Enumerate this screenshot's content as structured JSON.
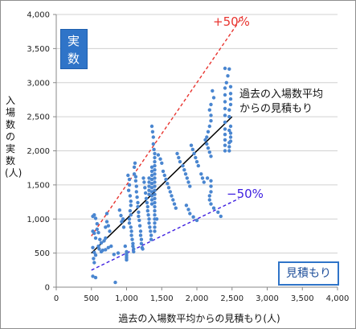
{
  "chart_data": {
    "type": "scatter",
    "xlabel": "過去の入場数平均からの見積もり(人)",
    "ylabel": "入場数の実数(人)",
    "xlim": [
      0,
      4000
    ],
    "ylim": [
      0,
      4000
    ],
    "x_ticks": [
      "0",
      "500",
      "1,000",
      "1,500",
      "2,000",
      "2,500",
      "3,000",
      "3,500",
      "4,000"
    ],
    "y_ticks": [
      "0",
      "500",
      "1,000",
      "1,500",
      "2,000",
      "2,500",
      "3,000",
      "3,500",
      "4,000"
    ],
    "grid": "horizontal",
    "point_color": "#4a86d0",
    "reference_lines": [
      {
        "label": "過去の入場数平均からの見積もり",
        "slope": 1.0,
        "x_range": [
          500,
          2500
        ],
        "color": "#000000",
        "style": "solid"
      },
      {
        "label": "+50%",
        "slope": 1.5,
        "x_range": [
          500,
          2650
        ],
        "color": "#e8342f",
        "style": "dashed"
      },
      {
        "label": "−50%",
        "slope": 0.5,
        "x_range": [
          500,
          2600
        ],
        "color": "#3d1ee0",
        "style": "dashed"
      }
    ],
    "annotations": {
      "actual_box": [
        "実",
        "数"
      ],
      "estimate_box": "見積もり",
      "plus50": "+50%",
      "minus50": "−50%",
      "fit_label": [
        "過去の入場数平均",
        "からの見積もり"
      ]
    },
    "points": [
      [
        520,
        1040
      ],
      [
        540,
        1060
      ],
      [
        560,
        1010
      ],
      [
        580,
        930
      ],
      [
        520,
        820
      ],
      [
        540,
        790
      ],
      [
        560,
        720
      ],
      [
        580,
        850
      ],
      [
        600,
        600
      ],
      [
        610,
        560
      ],
      [
        520,
        580
      ],
      [
        540,
        510
      ],
      [
        560,
        470
      ],
      [
        530,
        420
      ],
      [
        540,
        360
      ],
      [
        520,
        160
      ],
      [
        560,
        140
      ],
      [
        600,
        800
      ],
      [
        620,
        700
      ],
      [
        640,
        650
      ],
      [
        680,
        680
      ],
      [
        700,
        720
      ],
      [
        720,
        1080
      ],
      [
        720,
        960
      ],
      [
        740,
        900
      ],
      [
        700,
        880
      ],
      [
        760,
        820
      ],
      [
        780,
        600
      ],
      [
        740,
        580
      ],
      [
        700,
        550
      ],
      [
        660,
        540
      ],
      [
        640,
        520
      ],
      [
        820,
        480
      ],
      [
        840,
        70
      ],
      [
        880,
        500
      ],
      [
        900,
        1130
      ],
      [
        920,
        1050
      ],
      [
        950,
        1000
      ],
      [
        930,
        960
      ],
      [
        960,
        880
      ],
      [
        980,
        600
      ],
      [
        1000,
        520
      ],
      [
        1000,
        490
      ],
      [
        1000,
        460
      ],
      [
        1000,
        430
      ],
      [
        1000,
        400
      ],
      [
        1020,
        1640
      ],
      [
        1040,
        1580
      ],
      [
        1040,
        1500
      ],
      [
        1030,
        1420
      ],
      [
        1050,
        1340
      ],
      [
        1060,
        1260
      ],
      [
        1060,
        1200
      ],
      [
        1050,
        1120
      ],
      [
        1060,
        1060
      ],
      [
        1040,
        1000
      ],
      [
        1040,
        940
      ],
      [
        1060,
        880
      ],
      [
        1070,
        820
      ],
      [
        1070,
        760
      ],
      [
        1080,
        700
      ],
      [
        1090,
        640
      ],
      [
        1090,
        600
      ],
      [
        1100,
        560
      ],
      [
        1100,
        520
      ],
      [
        1110,
        1660
      ],
      [
        1110,
        1760
      ],
      [
        1120,
        1820
      ],
      [
        1130,
        1620
      ],
      [
        1130,
        1560
      ],
      [
        1140,
        1480
      ],
      [
        1140,
        1400
      ],
      [
        1150,
        1320
      ],
      [
        1160,
        1240
      ],
      [
        1160,
        1180
      ],
      [
        1170,
        1100
      ],
      [
        1170,
        1040
      ],
      [
        1180,
        980
      ],
      [
        1190,
        900
      ],
      [
        1200,
        820
      ],
      [
        1200,
        760
      ],
      [
        1210,
        700
      ],
      [
        1210,
        640
      ],
      [
        1220,
        580
      ],
      [
        1230,
        560
      ],
      [
        1240,
        1600
      ],
      [
        1250,
        1540
      ],
      [
        1260,
        1460
      ],
      [
        1270,
        1380
      ],
      [
        1280,
        1300
      ],
      [
        1290,
        1240
      ],
      [
        1300,
        1180
      ],
      [
        1300,
        1120
      ],
      [
        1310,
        1060
      ],
      [
        1320,
        1000
      ],
      [
        1320,
        940
      ],
      [
        1330,
        880
      ],
      [
        1340,
        820
      ],
      [
        1350,
        760
      ],
      [
        1350,
        700
      ],
      [
        1360,
        2360
      ],
      [
        1370,
        2280
      ],
      [
        1380,
        2200
      ],
      [
        1380,
        2100
      ],
      [
        1390,
        2020
      ],
      [
        1400,
        1960
      ],
      [
        1400,
        1900
      ],
      [
        1400,
        1840
      ],
      [
        1400,
        1780
      ],
      [
        1400,
        1720
      ],
      [
        1400,
        1660
      ],
      [
        1400,
        1600
      ],
      [
        1400,
        1540
      ],
      [
        1400,
        1480
      ],
      [
        1400,
        1420
      ],
      [
        1400,
        1360
      ],
      [
        1400,
        1300
      ],
      [
        1400,
        1240
      ],
      [
        1400,
        1180
      ],
      [
        1400,
        1120
      ],
      [
        1400,
        1060
      ],
      [
        1400,
        1000
      ],
      [
        1400,
        940
      ],
      [
        1400,
        880
      ],
      [
        1400,
        820
      ],
      [
        1360,
        1760
      ],
      [
        1360,
        1700
      ],
      [
        1360,
        1640
      ],
      [
        1360,
        1580
      ],
      [
        1360,
        1520
      ],
      [
        1360,
        1460
      ],
      [
        1360,
        1400
      ],
      [
        1360,
        1340
      ],
      [
        1360,
        1280
      ],
      [
        1360,
        1220
      ],
      [
        1320,
        1600
      ],
      [
        1320,
        1540
      ],
      [
        1320,
        1480
      ],
      [
        1320,
        1420
      ],
      [
        1320,
        1360
      ],
      [
        1430,
        1000
      ],
      [
        1450,
        1940
      ],
      [
        1480,
        1880
      ],
      [
        1500,
        1820
      ],
      [
        1520,
        1700
      ],
      [
        1540,
        1640
      ],
      [
        1560,
        1580
      ],
      [
        1580,
        1520
      ],
      [
        1600,
        1460
      ],
      [
        1620,
        1400
      ],
      [
        1640,
        1340
      ],
      [
        1660,
        1280
      ],
      [
        1680,
        1220
      ],
      [
        1700,
        1160
      ],
      [
        1720,
        1960
      ],
      [
        1740,
        1900
      ],
      [
        1760,
        1840
      ],
      [
        1800,
        1780
      ],
      [
        1820,
        1720
      ],
      [
        1840,
        1660
      ],
      [
        1860,
        1600
      ],
      [
        1880,
        1540
      ],
      [
        1900,
        1480
      ],
      [
        1920,
        2080
      ],
      [
        1940,
        2020
      ],
      [
        1960,
        1960
      ],
      [
        1980,
        1900
      ],
      [
        2000,
        1840
      ],
      [
        2020,
        1780
      ],
      [
        1850,
        1200
      ],
      [
        1880,
        1140
      ],
      [
        1900,
        1080
      ],
      [
        1950,
        1030
      ],
      [
        2000,
        980
      ],
      [
        2060,
        1660
      ],
      [
        2080,
        1600
      ],
      [
        2100,
        1540
      ],
      [
        2140,
        2100
      ],
      [
        2160,
        2040
      ],
      [
        2180,
        1980
      ],
      [
        2200,
        1920
      ],
      [
        2220,
        2880
      ],
      [
        2240,
        2780
      ],
      [
        2200,
        2680
      ],
      [
        2180,
        2600
      ],
      [
        2200,
        2520
      ],
      [
        2200,
        2440
      ],
      [
        2180,
        2360
      ],
      [
        2160,
        2280
      ],
      [
        2140,
        2200
      ],
      [
        2120,
        2160
      ],
      [
        2150,
        1600
      ],
      [
        2200,
        1560
      ],
      [
        2200,
        1480
      ],
      [
        2200,
        1400
      ],
      [
        2180,
        1340
      ],
      [
        2180,
        1280
      ],
      [
        2200,
        1220
      ],
      [
        2240,
        1160
      ],
      [
        2300,
        1100
      ],
      [
        2340,
        1040
      ],
      [
        2400,
        2000
      ],
      [
        2400,
        2080
      ],
      [
        2400,
        2160
      ],
      [
        2400,
        2240
      ],
      [
        2400,
        2320
      ],
      [
        2400,
        2420
      ],
      [
        2400,
        2520
      ],
      [
        2400,
        2620
      ],
      [
        2400,
        2720
      ],
      [
        2400,
        2820
      ],
      [
        2400,
        2920
      ],
      [
        2420,
        3000
      ],
      [
        2440,
        3100
      ],
      [
        2460,
        3200
      ],
      [
        2400,
        3210
      ],
      [
        2460,
        2000
      ],
      [
        2460,
        2060
      ],
      [
        2460,
        2120
      ],
      [
        2460,
        2300
      ],
      [
        2460,
        2500
      ],
      [
        2460,
        2600
      ],
      [
        2480,
        2680
      ],
      [
        2480,
        2760
      ],
      [
        2480,
        2840
      ],
      [
        2480,
        2940
      ],
      [
        2480,
        2360
      ],
      [
        2480,
        2260
      ],
      [
        2480,
        2200
      ],
      [
        2480,
        2140
      ]
    ]
  }
}
